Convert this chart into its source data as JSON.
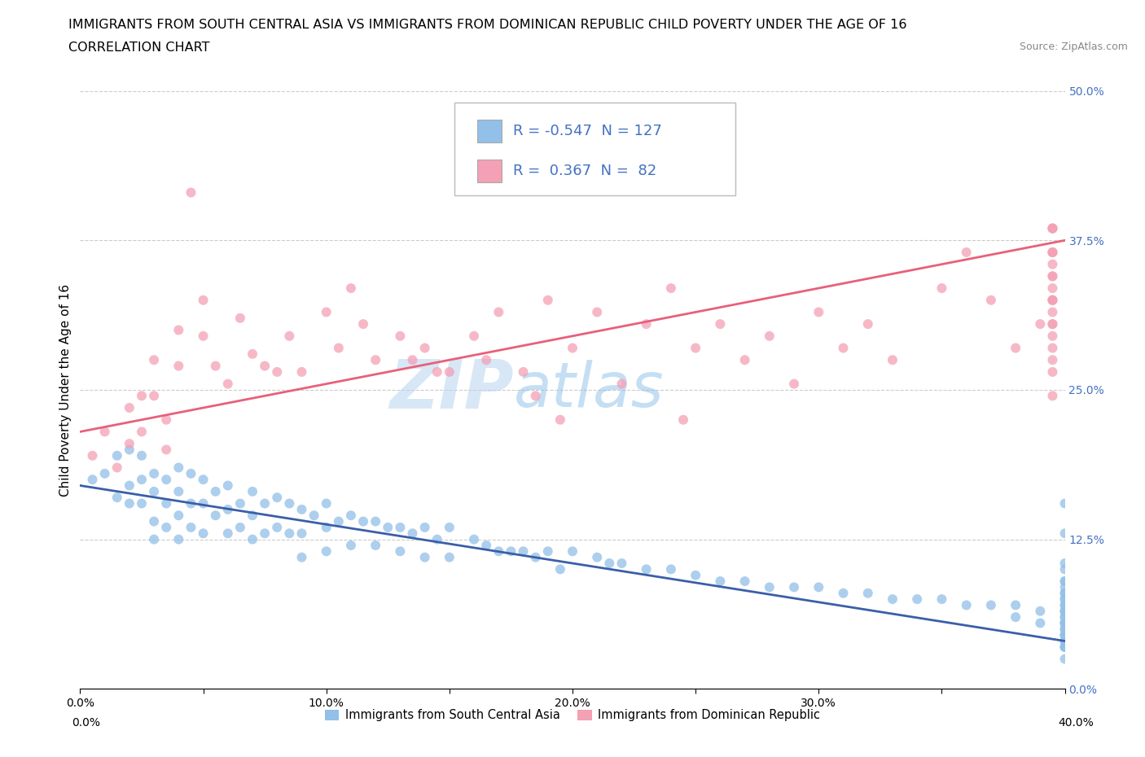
{
  "title_line1": "IMMIGRANTS FROM SOUTH CENTRAL ASIA VS IMMIGRANTS FROM DOMINICAN REPUBLIC CHILD POVERTY UNDER THE AGE OF 16",
  "title_line2": "CORRELATION CHART",
  "source_text": "Source: ZipAtlas.com",
  "ylabel": "Child Poverty Under the Age of 16",
  "xlim": [
    0.0,
    0.4
  ],
  "ylim": [
    0.0,
    0.5
  ],
  "xtick_vals": [
    0.0,
    0.05,
    0.1,
    0.15,
    0.2,
    0.25,
    0.3,
    0.35,
    0.4
  ],
  "xtick_labels": [
    "0.0%",
    "",
    "10.0%",
    "",
    "20.0%",
    "",
    "30.0%",
    "",
    "40.0%"
  ],
  "ytick_vals": [
    0.0,
    0.125,
    0.25,
    0.375,
    0.5
  ],
  "ytick_labels": [
    "0.0%",
    "12.5%",
    "25.0%",
    "37.5%",
    "50.0%"
  ],
  "blue_color": "#92C0E8",
  "pink_color": "#F4A0B5",
  "blue_line_color": "#3A5FA8",
  "pink_line_color": "#E8607A",
  "blue_tick_color": "#4472C4",
  "watermark_zip": "ZIP",
  "watermark_atlas": "atlas",
  "legend_R_blue": "-0.547",
  "legend_N_blue": "127",
  "legend_R_pink": "0.367",
  "legend_N_pink": "82",
  "legend_label_blue": "Immigrants from South Central Asia",
  "legend_label_pink": "Immigrants from Dominican Republic",
  "blue_scatter_x": [
    0.005,
    0.01,
    0.015,
    0.015,
    0.02,
    0.02,
    0.02,
    0.025,
    0.025,
    0.025,
    0.03,
    0.03,
    0.03,
    0.03,
    0.035,
    0.035,
    0.035,
    0.04,
    0.04,
    0.04,
    0.04,
    0.045,
    0.045,
    0.045,
    0.05,
    0.05,
    0.05,
    0.055,
    0.055,
    0.06,
    0.06,
    0.06,
    0.065,
    0.065,
    0.07,
    0.07,
    0.07,
    0.075,
    0.075,
    0.08,
    0.08,
    0.085,
    0.085,
    0.09,
    0.09,
    0.09,
    0.095,
    0.1,
    0.1,
    0.1,
    0.105,
    0.11,
    0.11,
    0.115,
    0.12,
    0.12,
    0.125,
    0.13,
    0.13,
    0.135,
    0.14,
    0.14,
    0.145,
    0.15,
    0.15,
    0.16,
    0.165,
    0.17,
    0.175,
    0.18,
    0.185,
    0.19,
    0.195,
    0.2,
    0.21,
    0.215,
    0.22,
    0.23,
    0.24,
    0.25,
    0.26,
    0.27,
    0.28,
    0.29,
    0.3,
    0.31,
    0.32,
    0.33,
    0.34,
    0.35,
    0.36,
    0.37,
    0.38,
    0.38,
    0.39,
    0.39,
    0.4,
    0.4,
    0.4,
    0.4,
    0.4,
    0.4,
    0.4,
    0.4,
    0.4,
    0.4,
    0.4,
    0.4,
    0.4,
    0.4,
    0.4,
    0.4,
    0.4,
    0.4,
    0.4,
    0.4,
    0.4,
    0.4,
    0.4,
    0.4,
    0.4,
    0.4,
    0.4,
    0.4,
    0.4,
    0.4,
    0.4,
    0.4
  ],
  "blue_scatter_y": [
    0.175,
    0.18,
    0.195,
    0.16,
    0.2,
    0.17,
    0.155,
    0.195,
    0.175,
    0.155,
    0.18,
    0.165,
    0.14,
    0.125,
    0.175,
    0.155,
    0.135,
    0.185,
    0.165,
    0.145,
    0.125,
    0.18,
    0.155,
    0.135,
    0.175,
    0.155,
    0.13,
    0.165,
    0.145,
    0.17,
    0.15,
    0.13,
    0.155,
    0.135,
    0.165,
    0.145,
    0.125,
    0.155,
    0.13,
    0.16,
    0.135,
    0.155,
    0.13,
    0.15,
    0.13,
    0.11,
    0.145,
    0.155,
    0.135,
    0.115,
    0.14,
    0.145,
    0.12,
    0.14,
    0.14,
    0.12,
    0.135,
    0.135,
    0.115,
    0.13,
    0.135,
    0.11,
    0.125,
    0.135,
    0.11,
    0.125,
    0.12,
    0.115,
    0.115,
    0.115,
    0.11,
    0.115,
    0.1,
    0.115,
    0.11,
    0.105,
    0.105,
    0.1,
    0.1,
    0.095,
    0.09,
    0.09,
    0.085,
    0.085,
    0.085,
    0.08,
    0.08,
    0.075,
    0.075,
    0.075,
    0.07,
    0.07,
    0.07,
    0.06,
    0.065,
    0.055,
    0.085,
    0.075,
    0.065,
    0.055,
    0.045,
    0.035,
    0.075,
    0.065,
    0.055,
    0.045,
    0.035,
    0.065,
    0.055,
    0.045,
    0.035,
    0.025,
    0.1,
    0.09,
    0.08,
    0.07,
    0.06,
    0.05,
    0.04,
    0.09,
    0.08,
    0.07,
    0.06,
    0.05,
    0.04,
    0.155,
    0.13,
    0.105
  ],
  "pink_scatter_x": [
    0.005,
    0.01,
    0.015,
    0.02,
    0.02,
    0.025,
    0.025,
    0.03,
    0.03,
    0.035,
    0.035,
    0.04,
    0.04,
    0.045,
    0.05,
    0.05,
    0.055,
    0.06,
    0.065,
    0.07,
    0.075,
    0.08,
    0.085,
    0.09,
    0.1,
    0.105,
    0.11,
    0.115,
    0.12,
    0.13,
    0.135,
    0.14,
    0.145,
    0.15,
    0.16,
    0.165,
    0.17,
    0.18,
    0.185,
    0.19,
    0.195,
    0.2,
    0.21,
    0.22,
    0.23,
    0.24,
    0.245,
    0.25,
    0.26,
    0.27,
    0.28,
    0.29,
    0.3,
    0.31,
    0.32,
    0.33,
    0.35,
    0.36,
    0.37,
    0.38,
    0.39,
    0.395,
    0.395,
    0.395,
    0.395,
    0.395,
    0.395,
    0.395,
    0.395,
    0.395,
    0.395,
    0.395,
    0.395,
    0.395,
    0.395,
    0.395,
    0.395,
    0.395,
    0.395,
    0.395,
    0.395,
    0.395
  ],
  "pink_scatter_y": [
    0.195,
    0.215,
    0.185,
    0.235,
    0.205,
    0.245,
    0.215,
    0.275,
    0.245,
    0.225,
    0.2,
    0.3,
    0.27,
    0.415,
    0.325,
    0.295,
    0.27,
    0.255,
    0.31,
    0.28,
    0.27,
    0.265,
    0.295,
    0.265,
    0.315,
    0.285,
    0.335,
    0.305,
    0.275,
    0.295,
    0.275,
    0.285,
    0.265,
    0.265,
    0.295,
    0.275,
    0.315,
    0.265,
    0.245,
    0.325,
    0.225,
    0.285,
    0.315,
    0.255,
    0.305,
    0.335,
    0.225,
    0.285,
    0.305,
    0.275,
    0.295,
    0.255,
    0.315,
    0.285,
    0.305,
    0.275,
    0.335,
    0.365,
    0.325,
    0.285,
    0.305,
    0.365,
    0.325,
    0.305,
    0.285,
    0.265,
    0.245,
    0.385,
    0.355,
    0.335,
    0.315,
    0.295,
    0.275,
    0.385,
    0.365,
    0.345,
    0.325,
    0.305,
    0.385,
    0.365,
    0.345,
    0.325
  ],
  "blue_trend_x": [
    0.0,
    0.4
  ],
  "blue_trend_y": [
    0.17,
    0.04
  ],
  "pink_trend_x": [
    0.0,
    0.4
  ],
  "pink_trend_y": [
    0.215,
    0.375
  ],
  "grid_color": "#CCCCCC",
  "background_color": "#FFFFFF",
  "title_fontsize": 11.5,
  "axis_label_fontsize": 11,
  "tick_fontsize": 10,
  "legend_fontsize": 13
}
